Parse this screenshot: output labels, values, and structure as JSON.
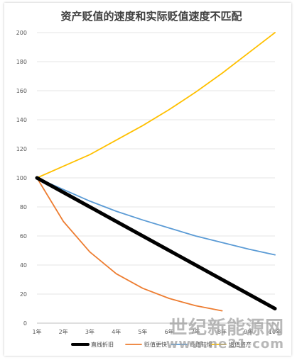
{
  "chart_data": {
    "type": "line",
    "title": "资产贬值的速度和实际贬值速度不匹配",
    "categories": [
      "1年",
      "2年",
      "3年",
      "4年",
      "5年",
      "6年",
      "7年",
      "8年",
      "9年",
      "10年"
    ],
    "ylim": [
      0,
      200
    ],
    "yticks": [
      0,
      20,
      40,
      60,
      80,
      100,
      120,
      140,
      160,
      180,
      200
    ],
    "grid": true,
    "legend_position": "bottom",
    "series": [
      {
        "name": "直线折旧",
        "color": "#000000",
        "values": [
          100,
          90,
          80,
          70,
          60,
          50,
          40,
          30,
          20,
          10
        ],
        "width": 5
      },
      {
        "name": "贬值更快",
        "color": "#ED7D31",
        "values": [
          100,
          70,
          49,
          34,
          24,
          17,
          12,
          8.5,
          null,
          null
        ],
        "width": 1.8
      },
      {
        "name": "贬值较慢",
        "color": "#5B9BD5",
        "values": [
          100,
          92,
          84,
          77,
          71,
          65.5,
          60,
          55.5,
          51,
          47
        ],
        "width": 1.8
      },
      {
        "name": "增值资产",
        "color": "#FFC000",
        "values": [
          100,
          108,
          116,
          126,
          136,
          147,
          159,
          172,
          186,
          200
        ],
        "width": 1.8
      }
    ]
  },
  "watermark": {
    "text": "世纪新能源网",
    "url": "www.ne21.com"
  }
}
